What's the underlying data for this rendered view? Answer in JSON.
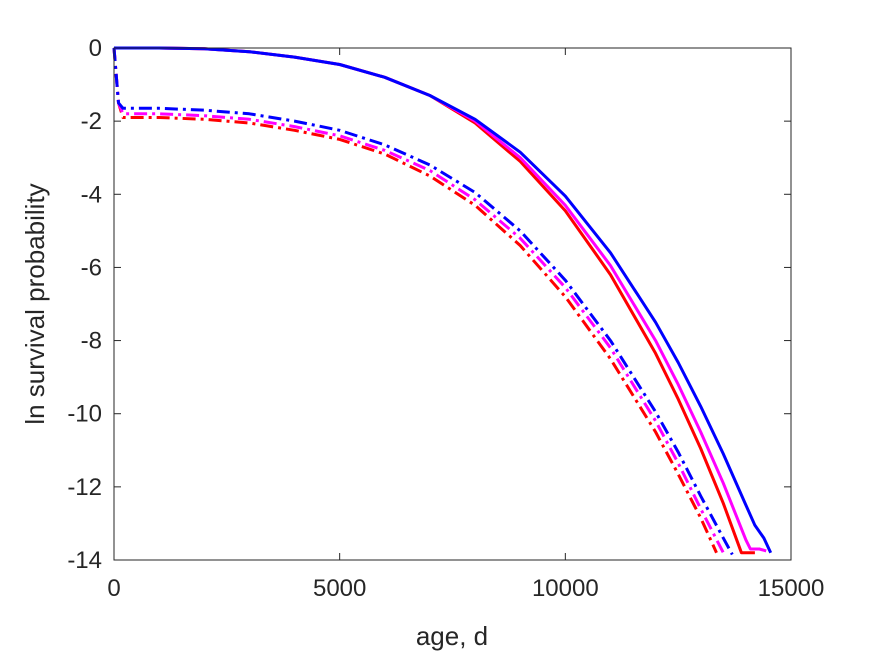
{
  "chart_data": {
    "type": "line",
    "xlabel": "age, d",
    "ylabel": "ln survival probability",
    "xlim": [
      0,
      15000
    ],
    "ylim": [
      -14,
      0
    ],
    "xticks": [
      0,
      5000,
      10000,
      15000
    ],
    "yticks": [
      0,
      -2,
      -4,
      -6,
      -8,
      -10,
      -12,
      -14
    ],
    "grid": false,
    "legend": "none",
    "series": [
      {
        "color": "#ff0000",
        "style": "solid",
        "points": [
          [
            0,
            0
          ],
          [
            1000,
            0
          ],
          [
            2000,
            -0.02
          ],
          [
            3000,
            -0.1
          ],
          [
            4000,
            -0.25
          ],
          [
            5000,
            -0.45
          ],
          [
            6000,
            -0.8
          ],
          [
            7000,
            -1.3
          ],
          [
            8000,
            -2.05
          ],
          [
            9000,
            -3.1
          ],
          [
            10000,
            -4.45
          ],
          [
            11000,
            -6.2
          ],
          [
            12000,
            -8.35
          ],
          [
            12500,
            -9.6
          ],
          [
            13000,
            -10.95
          ],
          [
            13500,
            -12.45
          ],
          [
            13900,
            -13.8
          ],
          [
            14200,
            -13.8
          ]
        ]
      },
      {
        "color": "#ff00ff",
        "style": "solid",
        "points": [
          [
            0,
            0
          ],
          [
            1000,
            0
          ],
          [
            2000,
            -0.02
          ],
          [
            3000,
            -0.1
          ],
          [
            4000,
            -0.25
          ],
          [
            5000,
            -0.45
          ],
          [
            6000,
            -0.8
          ],
          [
            7000,
            -1.3
          ],
          [
            8000,
            -2.0
          ],
          [
            9000,
            -3.0
          ],
          [
            10000,
            -4.3
          ],
          [
            11000,
            -5.95
          ],
          [
            12000,
            -8.0
          ],
          [
            12500,
            -9.2
          ],
          [
            13000,
            -10.5
          ],
          [
            13500,
            -11.9
          ],
          [
            14000,
            -13.45
          ],
          [
            14100,
            -13.7
          ],
          [
            14300,
            -13.7
          ],
          [
            14450,
            -13.75
          ]
        ]
      },
      {
        "color": "#0000ff",
        "style": "solid",
        "points": [
          [
            0,
            0
          ],
          [
            1000,
            0
          ],
          [
            2000,
            -0.02
          ],
          [
            3000,
            -0.1
          ],
          [
            4000,
            -0.25
          ],
          [
            5000,
            -0.45
          ],
          [
            6000,
            -0.8
          ],
          [
            7000,
            -1.3
          ],
          [
            8000,
            -1.95
          ],
          [
            9000,
            -2.85
          ],
          [
            10000,
            -4.05
          ],
          [
            11000,
            -5.6
          ],
          [
            12000,
            -7.5
          ],
          [
            12500,
            -8.6
          ],
          [
            13000,
            -9.8
          ],
          [
            13500,
            -11.1
          ],
          [
            14000,
            -12.5
          ],
          [
            14200,
            -13.05
          ],
          [
            14400,
            -13.4
          ],
          [
            14550,
            -13.8
          ]
        ]
      },
      {
        "color": "#ff0000",
        "style": "dashdot",
        "points": [
          [
            0,
            0
          ],
          [
            100,
            -1.5
          ],
          [
            200,
            -1.9
          ],
          [
            1000,
            -1.9
          ],
          [
            2000,
            -1.95
          ],
          [
            3000,
            -2.05
          ],
          [
            4000,
            -2.25
          ],
          [
            5000,
            -2.5
          ],
          [
            6000,
            -2.9
          ],
          [
            7000,
            -3.5
          ],
          [
            8000,
            -4.3
          ],
          [
            9000,
            -5.4
          ],
          [
            10000,
            -6.8
          ],
          [
            11000,
            -8.5
          ],
          [
            12000,
            -10.5
          ],
          [
            12500,
            -11.65
          ],
          [
            13000,
            -12.85
          ],
          [
            13350,
            -13.8
          ]
        ]
      },
      {
        "color": "#ff00ff",
        "style": "dashdot",
        "points": [
          [
            0,
            0
          ],
          [
            100,
            -1.5
          ],
          [
            200,
            -1.8
          ],
          [
            1000,
            -1.8
          ],
          [
            2000,
            -1.85
          ],
          [
            3000,
            -1.95
          ],
          [
            4000,
            -2.15
          ],
          [
            5000,
            -2.4
          ],
          [
            6000,
            -2.8
          ],
          [
            7000,
            -3.35
          ],
          [
            8000,
            -4.15
          ],
          [
            9000,
            -5.2
          ],
          [
            10000,
            -6.55
          ],
          [
            11000,
            -8.2
          ],
          [
            12000,
            -10.2
          ],
          [
            12500,
            -11.35
          ],
          [
            13000,
            -12.6
          ],
          [
            13500,
            -13.8
          ]
        ]
      },
      {
        "color": "#0000ff",
        "style": "dashdot",
        "points": [
          [
            0,
            0
          ],
          [
            100,
            -1.5
          ],
          [
            200,
            -1.65
          ],
          [
            1000,
            -1.65
          ],
          [
            2000,
            -1.7
          ],
          [
            3000,
            -1.8
          ],
          [
            4000,
            -2.0
          ],
          [
            5000,
            -2.25
          ],
          [
            6000,
            -2.65
          ],
          [
            7000,
            -3.2
          ],
          [
            8000,
            -3.95
          ],
          [
            9000,
            -5.0
          ],
          [
            10000,
            -6.35
          ],
          [
            11000,
            -8.0
          ],
          [
            12000,
            -9.95
          ],
          [
            12500,
            -11.05
          ],
          [
            13000,
            -12.25
          ],
          [
            13500,
            -13.4
          ],
          [
            13700,
            -13.85
          ]
        ]
      }
    ]
  }
}
